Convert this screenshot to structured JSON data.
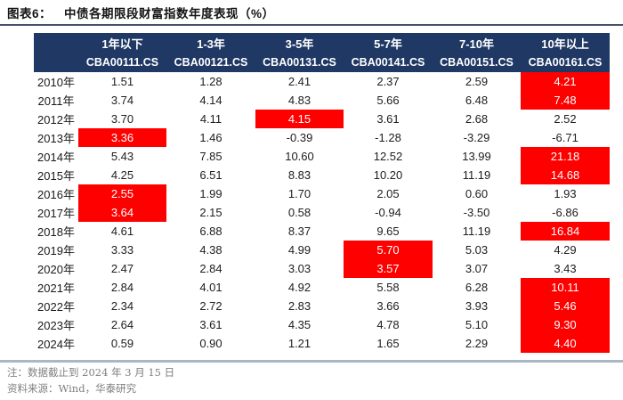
{
  "title": {
    "label": "图表6：",
    "text": "中债各期限段财富指数年度表现（%）"
  },
  "table": {
    "columns": [
      {
        "tenor": "1年以下",
        "code": "CBA00111.CS"
      },
      {
        "tenor": "1-3年",
        "code": "CBA00121.CS"
      },
      {
        "tenor": "3-5年",
        "code": "CBA00131.CS"
      },
      {
        "tenor": "5-7年",
        "code": "CBA00141.CS"
      },
      {
        "tenor": "7-10年",
        "code": "CBA00151.CS"
      },
      {
        "tenor": "10年以上",
        "code": "CBA00161.CS"
      }
    ],
    "rows": [
      {
        "year": "2010年",
        "values": [
          "1.51",
          "1.28",
          "2.41",
          "2.37",
          "2.59",
          "4.21"
        ],
        "highlight": 5
      },
      {
        "year": "2011年",
        "values": [
          "3.74",
          "4.14",
          "4.83",
          "5.66",
          "6.48",
          "7.48"
        ],
        "highlight": 5
      },
      {
        "year": "2012年",
        "values": [
          "3.70",
          "4.11",
          "4.15",
          "3.61",
          "2.68",
          "2.52"
        ],
        "highlight": 2
      },
      {
        "year": "2013年",
        "values": [
          "3.36",
          "1.46",
          "-0.39",
          "-1.28",
          "-3.29",
          "-6.71"
        ],
        "highlight": 0
      },
      {
        "year": "2014年",
        "values": [
          "5.43",
          "7.85",
          "10.60",
          "12.52",
          "13.99",
          "21.18"
        ],
        "highlight": 5
      },
      {
        "year": "2015年",
        "values": [
          "4.25",
          "6.51",
          "8.83",
          "10.20",
          "11.19",
          "14.68"
        ],
        "highlight": 5
      },
      {
        "year": "2016年",
        "values": [
          "2.55",
          "1.99",
          "1.70",
          "2.05",
          "0.60",
          "1.93"
        ],
        "highlight": 0
      },
      {
        "year": "2017年",
        "values": [
          "3.64",
          "2.15",
          "0.58",
          "-0.94",
          "-3.50",
          "-6.86"
        ],
        "highlight": 0
      },
      {
        "year": "2018年",
        "values": [
          "4.61",
          "6.88",
          "8.37",
          "9.65",
          "11.19",
          "16.84"
        ],
        "highlight": 5
      },
      {
        "year": "2019年",
        "values": [
          "3.33",
          "4.38",
          "4.99",
          "5.70",
          "5.03",
          "4.29"
        ],
        "highlight": 3
      },
      {
        "year": "2020年",
        "values": [
          "2.47",
          "2.84",
          "3.03",
          "3.57",
          "3.07",
          "3.43"
        ],
        "highlight": 3
      },
      {
        "year": "2021年",
        "values": [
          "2.84",
          "4.01",
          "4.92",
          "5.58",
          "6.28",
          "10.11"
        ],
        "highlight": 5
      },
      {
        "year": "2022年",
        "values": [
          "2.34",
          "2.72",
          "2.83",
          "3.66",
          "3.93",
          "5.46"
        ],
        "highlight": 5
      },
      {
        "year": "2023年",
        "values": [
          "2.64",
          "3.61",
          "4.35",
          "4.78",
          "5.10",
          "9.30"
        ],
        "highlight": 5
      },
      {
        "year": "2024年",
        "values": [
          "0.59",
          "0.90",
          "1.21",
          "1.65",
          "2.29",
          "4.40"
        ],
        "highlight": 5
      }
    ]
  },
  "footnotes": {
    "note": "注：数据截止到 2024 年 3 月 15 日",
    "source": "资料来源：Wind，华泰研究"
  },
  "colors": {
    "header_bg": "#1f3864",
    "highlight_bg": "#fe0000",
    "highlight_text": "#ffffff",
    "title_rule": "#44546a",
    "bottom_rule": "#aab7c4",
    "note_text": "#7f7f7f",
    "body_text": "#202020"
  }
}
